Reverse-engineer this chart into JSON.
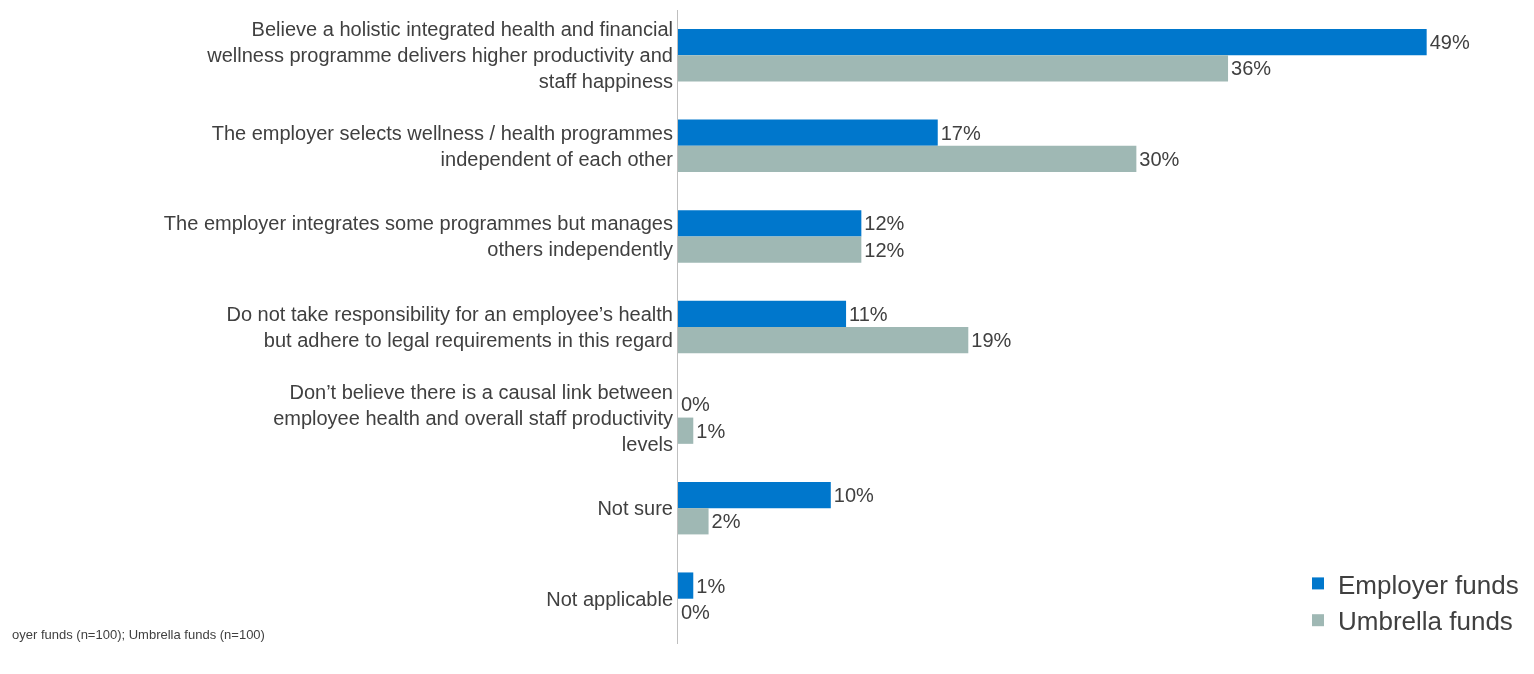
{
  "chart_data": {
    "type": "bar",
    "orientation": "horizontal",
    "legend": "bottom right",
    "categories": [
      "Believe a holistic integrated health and financial wellness programme delivers higher productivity and staff happiness",
      "The employer selects wellness / health programmes independent of each other",
      "The employer integrates some programmes but manages others independently",
      "Do not take responsibility for an employee’s health but adhere to legal requirements in this regard",
      "Don’t believe there is a causal link between employee health and overall staff productivity levels",
      "Not sure",
      "Not applicable"
    ],
    "series": [
      {
        "name": "Employer funds",
        "color": "#0077cc",
        "values": [
          49,
          17,
          12,
          11,
          0,
          10,
          1
        ],
        "value_labels": [
          "49%",
          "17%",
          "12%",
          "11%",
          "0%",
          "10%",
          "1%"
        ]
      },
      {
        "name": "Umbrella funds",
        "color": "#9fb8b4",
        "values": [
          36,
          30,
          12,
          19,
          1,
          2,
          0
        ],
        "value_labels": [
          "36%",
          "30%",
          "12%",
          "19%",
          "1%",
          "2%",
          "0%"
        ]
      }
    ],
    "annotations": [
      "oyer funds (n=100); Umbrella funds (n=100)"
    ]
  }
}
